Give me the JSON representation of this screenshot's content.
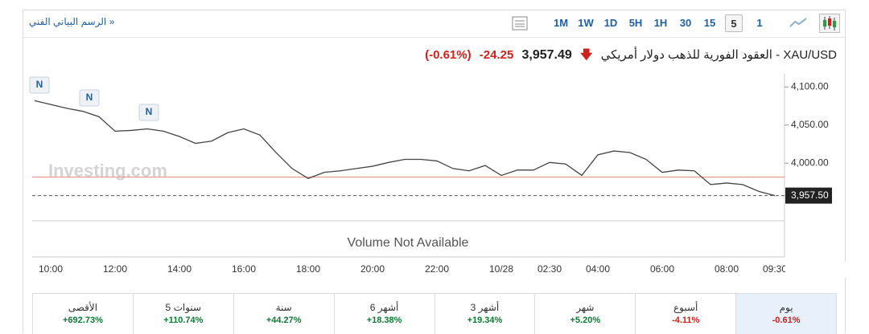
{
  "toolbar": {
    "link": "الرسم البياني الفني »",
    "intervals": [
      "1M",
      "1W",
      "1D",
      "5H",
      "1H",
      "30",
      "15",
      "5",
      "1"
    ],
    "selected_interval": 7
  },
  "header": {
    "symbol": "XAU/USD - العقود الفورية للذهب دولار أمريكي",
    "price": "3,957.49",
    "change": "-24.25",
    "change_pct": "(-0.61%)"
  },
  "chart_data": {
    "type": "line",
    "color": "#444444",
    "categories": [
      null,
      "10:00",
      null,
      null,
      null,
      "12:00",
      null,
      null,
      null,
      "14:00",
      null,
      null,
      null,
      "16:00",
      null,
      null,
      null,
      "18:00",
      null,
      null,
      null,
      "20:00",
      null,
      null,
      null,
      "22:00",
      null,
      null,
      null,
      "10/28",
      null,
      null,
      "02:30",
      null,
      null,
      "04:00",
      null,
      null,
      null,
      "06:00",
      null,
      null,
      null,
      "08:00",
      null,
      null,
      "09:30"
    ],
    "values": [
      4082,
      4077,
      4072,
      4068,
      4061,
      4042,
      4043,
      4045,
      4042,
      4035,
      4026,
      4029,
      4040,
      4045,
      4037,
      4014,
      3993,
      3980,
      3988,
      3990,
      3993,
      3996,
      4001,
      4005,
      4005,
      4003,
      3993,
      3990,
      3997,
      3984,
      3991,
      3991,
      4001,
      3999,
      3984,
      4011,
      4016,
      4014,
      4005,
      3988,
      3991,
      3990,
      3972,
      3974,
      3972,
      3963,
      3957.5
    ],
    "ylim": [
      3935,
      4114
    ],
    "yticks": [
      {
        "value": 4100,
        "label": "4,100.00"
      },
      {
        "value": 4050,
        "label": "4,050.00"
      },
      {
        "value": 4000,
        "label": "4,000.00"
      }
    ],
    "reference_line": 3981.74,
    "last": {
      "value": 3957.5,
      "label": "3,957.50"
    },
    "news_markers": [
      "N",
      "N",
      "N"
    ],
    "watermark": "Investing.com",
    "volume_note": "Volume Not Available"
  },
  "performance": [
    {
      "label": "الأقصى",
      "change": "+692.73%"
    },
    {
      "label": "5 سنوات",
      "change": "+110.74%"
    },
    {
      "label": "سنة",
      "change": "+44.27%"
    },
    {
      "label": "6 أشهر",
      "change": "+18.38%"
    },
    {
      "label": "3 أشهر",
      "change": "+19.34%"
    },
    {
      "label": "شهر",
      "change": "+5.20%"
    },
    {
      "label": "أسبوع",
      "change": "-4.11%"
    },
    {
      "label": "يوم",
      "change": "-0.61%"
    }
  ],
  "selected_performance": 7
}
